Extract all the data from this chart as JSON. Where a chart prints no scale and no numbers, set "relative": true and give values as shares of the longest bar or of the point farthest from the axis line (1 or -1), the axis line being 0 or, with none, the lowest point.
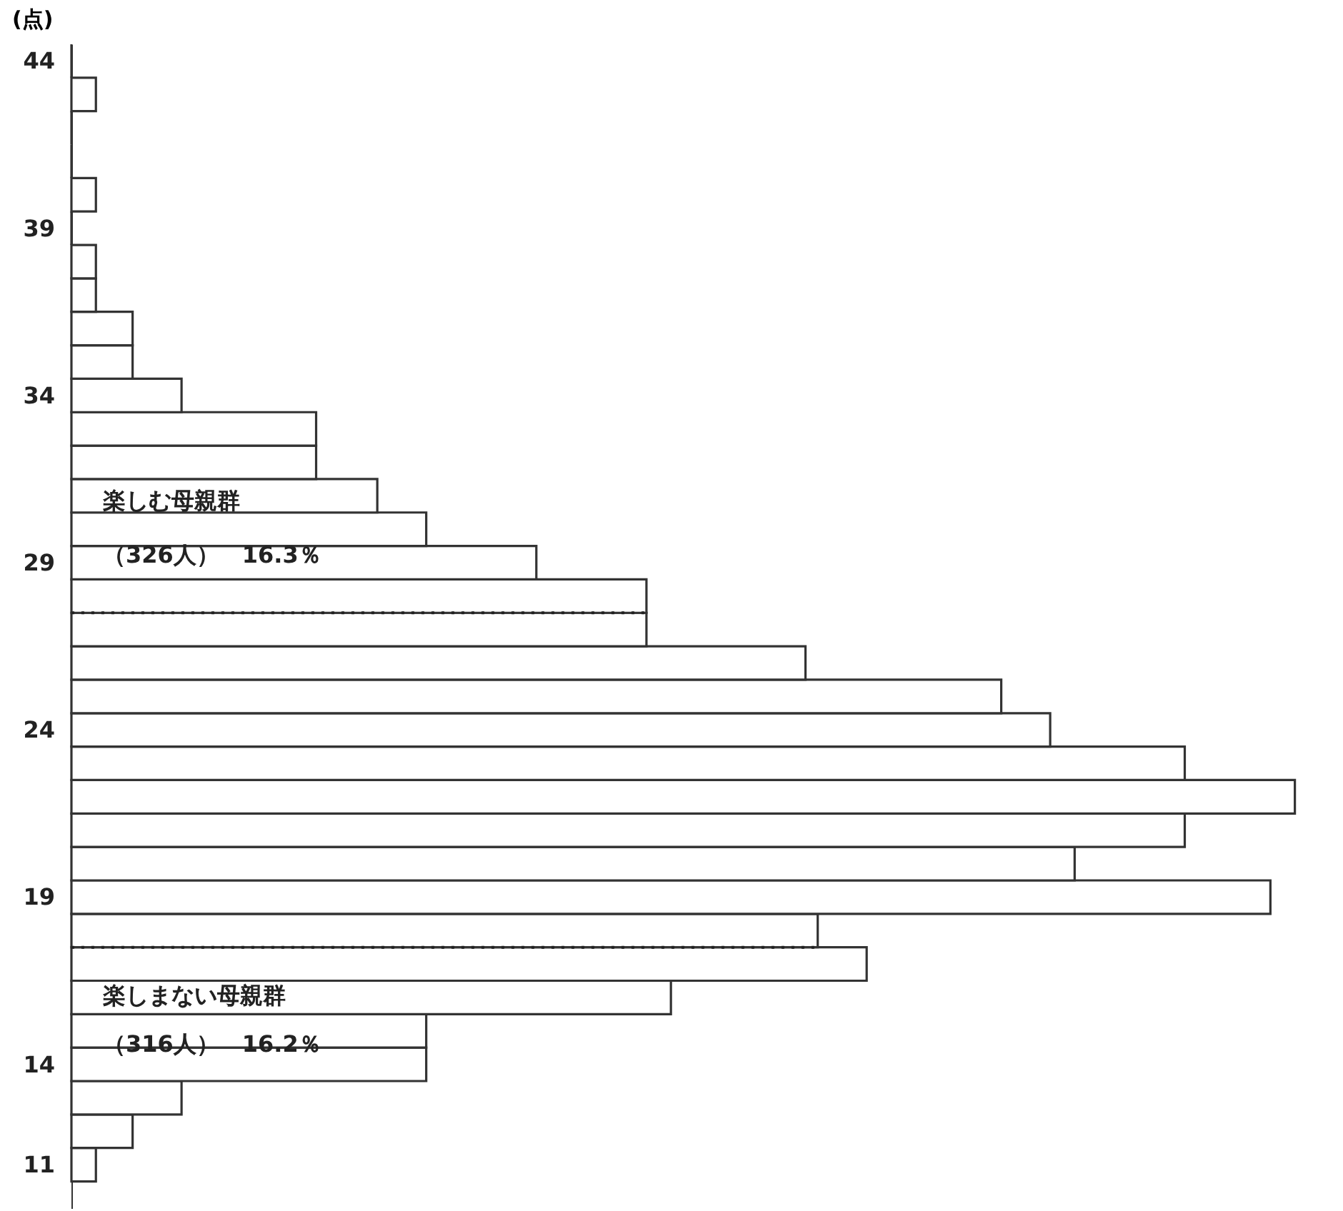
{
  "chart_data": {
    "type": "bar",
    "orientation": "horizontal",
    "relative": true,
    "ylabel": "(点)",
    "x": [
      11,
      12,
      13,
      14,
      15,
      16,
      17,
      18,
      19,
      20,
      21,
      22,
      23,
      24,
      25,
      26,
      27,
      28,
      29,
      30,
      31,
      32,
      33,
      34,
      35,
      36,
      37,
      38,
      39,
      40,
      41,
      42,
      43,
      44
    ],
    "values": [
      0.02,
      0.05,
      0.09,
      0.29,
      0.29,
      0.49,
      0.65,
      0.61,
      0.98,
      0.82,
      0.91,
      1,
      0.91,
      0.8,
      0.76,
      0.6,
      0.47,
      0.47,
      0.38,
      0.29,
      0.25,
      0.2,
      0.2,
      0.09,
      0.05,
      0.05,
      0.02,
      0.02,
      0,
      0.02,
      0,
      0,
      0.02,
      0
    ],
    "color": "#333333",
    "ylim": [
      9.7,
      44.5
    ],
    "yticks": [
      11,
      14,
      19,
      24,
      29,
      34,
      39,
      44
    ],
    "ref_lines": [
      {
        "axis": "y",
        "value": 27.5,
        "line_style": "dotted"
      },
      {
        "axis": "y",
        "value": 17.5,
        "line_style": "dotted"
      }
    ],
    "annotations": [
      "楽しむ母親群",
      "（326人）　16.3％",
      "楽しまない母親群",
      "（316人）　16.2％"
    ]
  }
}
